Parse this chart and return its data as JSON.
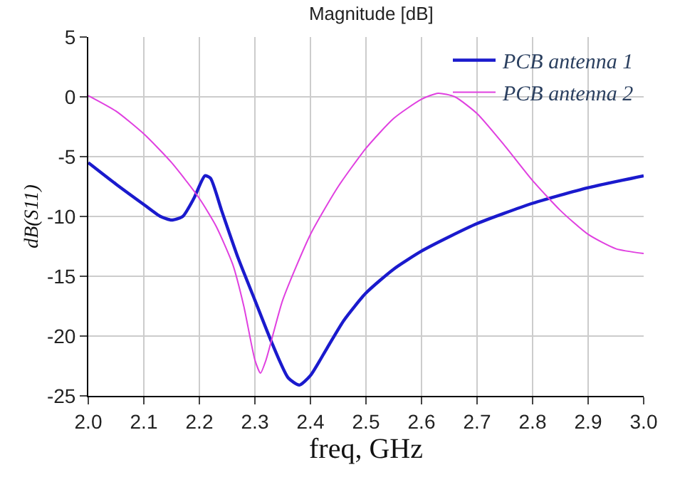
{
  "chart_data": {
    "type": "line",
    "title": "Magnitude [dB]",
    "xlabel": "freq, GHz",
    "ylabel": "dB(S11)",
    "xlim": [
      2.0,
      3.0
    ],
    "xticks": [
      {
        "value": 2.0,
        "label": "2.0"
      },
      2.1,
      2.2,
      2.3,
      2.4,
      2.5,
      2.6,
      2.7,
      2.8,
      2.9,
      {
        "value": 3.0,
        "label": "3.0"
      }
    ],
    "ylim": [
      -25,
      5
    ],
    "yticks": [
      -25,
      -20,
      -15,
      -10,
      -5,
      0,
      5
    ],
    "grid": true,
    "legend": "top right",
    "marker": "none",
    "line_style": "solid",
    "series": [
      {
        "name": "PCB antenna 1",
        "color": "#1a1acd",
        "x": [
          2.0,
          2.05,
          2.1,
          2.13,
          2.15,
          2.17,
          2.19,
          2.21,
          2.22,
          2.24,
          2.27,
          2.3,
          2.33,
          2.36,
          2.38,
          2.4,
          2.43,
          2.46,
          2.5,
          2.55,
          2.6,
          2.65,
          2.7,
          2.8,
          2.9,
          3.0
        ],
        "values": [
          -5.5,
          -7.3,
          -9.0,
          -10.0,
          -10.3,
          -10.0,
          -8.5,
          -6.6,
          -6.8,
          -9.5,
          -13.5,
          -17,
          -20.5,
          -23.5,
          -24.1,
          -23.3,
          -21,
          -18.7,
          -16.4,
          -14.4,
          -12.9,
          -11.7,
          -10.6,
          -8.9,
          -7.6,
          -6.6
        ]
      },
      {
        "name": "PCB antenna 2",
        "color": "#e040e0",
        "x": [
          2.0,
          2.05,
          2.1,
          2.15,
          2.2,
          2.23,
          2.26,
          2.28,
          2.3,
          2.31,
          2.32,
          2.35,
          2.4,
          2.45,
          2.5,
          2.55,
          2.6,
          2.63,
          2.66,
          2.7,
          2.75,
          2.8,
          2.85,
          2.9,
          2.95,
          3.0
        ],
        "values": [
          0.1,
          -1.2,
          -3.1,
          -5.5,
          -8.5,
          -10.8,
          -14,
          -17.5,
          -22,
          -23.1,
          -22,
          -17,
          -11.5,
          -7.5,
          -4.3,
          -1.8,
          -0.2,
          0.3,
          0,
          -1.4,
          -4.1,
          -7,
          -9.5,
          -11.5,
          -12.7,
          -13.1
        ]
      }
    ]
  }
}
